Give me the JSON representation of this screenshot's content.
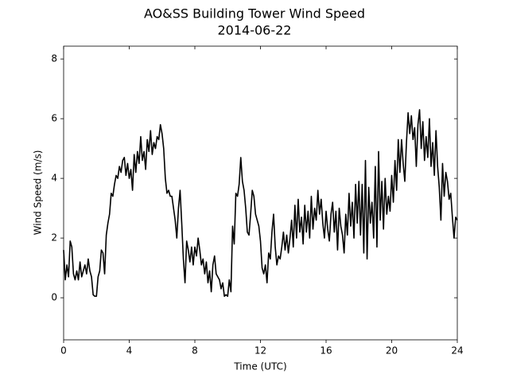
{
  "chart_data": {
    "type": "line",
    "title": "AO&SS Building Tower Wind Speed",
    "subtitle": "2014-06-22",
    "xlabel": "Time (UTC)",
    "ylabel": "Wind Speed (m/s)",
    "xlim": [
      0,
      24
    ],
    "xticks": [
      0,
      4,
      8,
      12,
      16,
      20,
      24
    ],
    "ylim": [
      -1.41,
      8.43
    ],
    "yticks": [
      0,
      2,
      4,
      6,
      8
    ],
    "grid": false,
    "x": [
      0,
      0.1,
      0.2,
      0.3,
      0.4,
      0.5,
      0.6,
      0.7,
      0.8,
      0.9,
      1,
      1.1,
      1.2,
      1.3,
      1.4,
      1.5,
      1.6,
      1.7,
      1.8,
      1.9,
      2,
      2.1,
      2.2,
      2.3,
      2.4,
      2.5,
      2.6,
      2.7,
      2.8,
      2.9,
      3,
      3.1,
      3.2,
      3.3,
      3.4,
      3.5,
      3.6,
      3.7,
      3.8,
      3.9,
      4,
      4.1,
      4.2,
      4.3,
      4.4,
      4.5,
      4.6,
      4.7,
      4.8,
      4.9,
      5,
      5.1,
      5.2,
      5.3,
      5.4,
      5.5,
      5.6,
      5.7,
      5.8,
      5.9,
      6,
      6.1,
      6.2,
      6.3,
      6.4,
      6.5,
      6.6,
      6.7,
      6.8,
      6.9,
      7,
      7.1,
      7.2,
      7.3,
      7.4,
      7.5,
      7.6,
      7.7,
      7.8,
      7.9,
      8,
      8.1,
      8.2,
      8.3,
      8.4,
      8.5,
      8.6,
      8.7,
      8.8,
      8.9,
      9,
      9.1,
      9.2,
      9.3,
      9.4,
      9.5,
      9.6,
      9.7,
      9.8,
      9.9,
      10,
      10.1,
      10.2,
      10.3,
      10.4,
      10.5,
      10.6,
      10.7,
      10.8,
      10.9,
      11,
      11.1,
      11.2,
      11.3,
      11.4,
      11.5,
      11.6,
      11.7,
      11.8,
      11.9,
      12,
      12.1,
      12.2,
      12.3,
      12.4,
      12.5,
      12.6,
      12.7,
      12.8,
      12.9,
      13,
      13.1,
      13.2,
      13.3,
      13.4,
      13.5,
      13.6,
      13.7,
      13.8,
      13.9,
      14,
      14.1,
      14.2,
      14.3,
      14.4,
      14.5,
      14.6,
      14.7,
      14.8,
      14.9,
      15,
      15.1,
      15.2,
      15.3,
      15.4,
      15.5,
      15.6,
      15.7,
      15.8,
      15.9,
      16,
      16.1,
      16.2,
      16.3,
      16.4,
      16.5,
      16.6,
      16.7,
      16.8,
      16.9,
      17,
      17.1,
      17.2,
      17.3,
      17.4,
      17.5,
      17.6,
      17.7,
      17.8,
      17.9,
      18,
      18.1,
      18.2,
      18.3,
      18.4,
      18.5,
      18.6,
      18.7,
      18.8,
      18.9,
      19,
      19.1,
      19.2,
      19.3,
      19.4,
      19.5,
      19.6,
      19.7,
      19.8,
      19.9,
      20,
      20.1,
      20.2,
      20.3,
      20.4,
      20.5,
      20.6,
      20.7,
      20.8,
      20.9,
      21,
      21.1,
      21.2,
      21.3,
      21.4,
      21.5,
      21.6,
      21.7,
      21.8,
      21.9,
      22,
      22.1,
      22.2,
      22.3,
      22.4,
      22.5,
      22.6,
      22.7,
      22.8,
      22.9,
      23,
      23.1,
      23.2,
      23.3,
      23.4,
      23.5,
      23.6,
      23.7,
      23.8,
      23.9,
      24
    ],
    "series": [
      {
        "color": "#000000",
        "values": [
          1.6,
          0.6,
          1.1,
          0.7,
          1.9,
          1.7,
          0.8,
          0.6,
          0.9,
          0.6,
          1.2,
          0.7,
          0.9,
          1.1,
          0.8,
          1.3,
          0.9,
          0.7,
          0.1,
          0.05,
          0.05,
          0.7,
          0.9,
          1.6,
          1.5,
          0.8,
          2.1,
          2.5,
          2.8,
          3.5,
          3.4,
          3.8,
          4.1,
          4.0,
          4.4,
          4.2,
          4.6,
          4.7,
          4.1,
          4.5,
          4.0,
          4.3,
          3.6,
          4.8,
          4.2,
          4.9,
          4.5,
          5.4,
          4.6,
          4.9,
          4.3,
          5.3,
          4.9,
          5.6,
          4.8,
          5.2,
          5.0,
          5.4,
          5.3,
          5.8,
          5.5,
          5.0,
          4.0,
          3.5,
          3.6,
          3.4,
          3.4,
          3.0,
          2.6,
          2.0,
          3.0,
          3.6,
          2.5,
          1.3,
          0.5,
          1.9,
          1.6,
          1.2,
          1.7,
          1.1,
          1.7,
          1.4,
          2.0,
          1.6,
          1.1,
          1.3,
          0.8,
          1.2,
          0.5,
          0.9,
          0.2,
          1.1,
          1.4,
          0.8,
          0.7,
          0.6,
          0.3,
          0.5,
          0.05,
          0.1,
          0.05,
          0.6,
          0.2,
          2.4,
          1.8,
          3.5,
          3.4,
          3.8,
          4.7,
          3.9,
          3.6,
          3.0,
          2.2,
          2.1,
          2.8,
          3.6,
          3.4,
          2.8,
          2.6,
          2.4,
          1.9,
          1.0,
          0.8,
          1.1,
          0.5,
          1.5,
          1.3,
          2.2,
          2.8,
          1.7,
          1.1,
          1.4,
          1.3,
          1.7,
          2.2,
          1.6,
          2.1,
          1.5,
          2.0,
          2.6,
          1.7,
          3.1,
          2.0,
          3.3,
          2.2,
          2.7,
          1.8,
          3.1,
          2.2,
          2.9,
          2.0,
          3.4,
          2.3,
          3.0,
          2.6,
          3.6,
          2.8,
          3.3,
          2.5,
          2.0,
          2.9,
          2.3,
          1.9,
          2.8,
          3.2,
          2.2,
          2.9,
          1.6,
          3.0,
          2.4,
          2.1,
          1.5,
          2.8,
          2.1,
          3.5,
          2.4,
          3.2,
          2.0,
          3.8,
          2.5,
          3.9,
          2.1,
          3.8,
          1.5,
          4.6,
          1.3,
          3.7,
          2.5,
          3.2,
          2.0,
          4.4,
          1.7,
          4.9,
          2.6,
          3.9,
          2.3,
          4.0,
          2.8,
          3.4,
          2.9,
          4.1,
          3.2,
          4.6,
          3.6,
          5.3,
          4.2,
          5.3,
          4.5,
          3.9,
          5.2,
          6.2,
          5.5,
          6.1,
          5.3,
          5.7,
          4.4,
          5.8,
          6.3,
          5.0,
          5.9,
          4.6,
          5.4,
          4.7,
          6.0,
          4.4,
          5.2,
          4.1,
          5.6,
          4.4,
          3.7,
          2.6,
          4.5,
          3.4,
          4.2,
          3.9,
          3.3,
          3.5,
          2.7,
          2.0,
          2.7,
          2.6
        ]
      }
    ]
  }
}
